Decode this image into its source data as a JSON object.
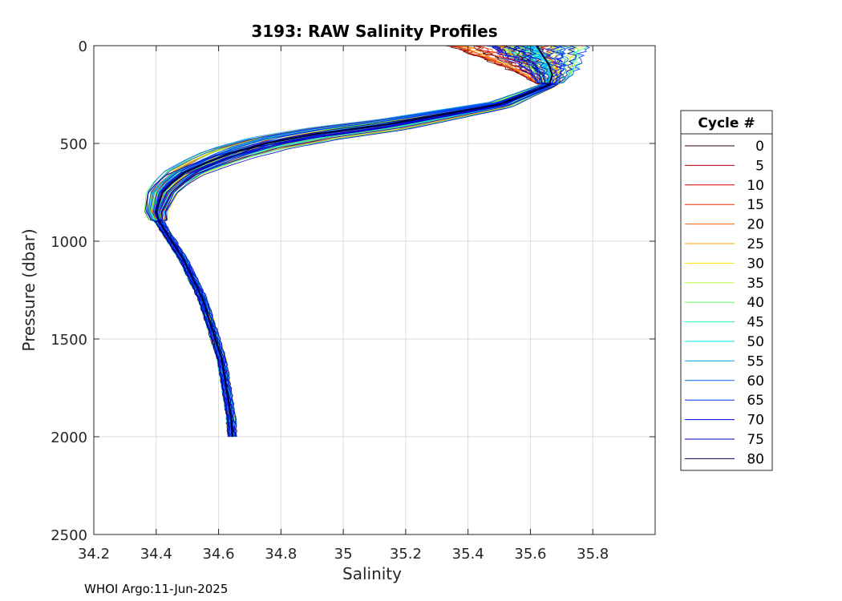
{
  "chart_data": {
    "type": "line",
    "title": "3193: RAW Salinity Profiles",
    "xlabel": "Salinity",
    "ylabel": "Pressure (dbar)",
    "xlim": [
      34.2,
      36.0
    ],
    "ylim": [
      0,
      2500
    ],
    "y_reversed": true,
    "grid": true,
    "x_ticks": [
      34.2,
      34.4,
      34.6,
      34.8,
      35,
      35.2,
      35.4,
      35.6,
      35.8
    ],
    "x_tick_labels": [
      "34.2",
      "34.4",
      "34.6",
      "34.8",
      "35",
      "35.2",
      "35.4",
      "35.6",
      "35.8"
    ],
    "y_ticks": [
      0,
      500,
      1000,
      1500,
      2000,
      2500
    ],
    "y_tick_labels": [
      "0",
      "500",
      "1000",
      "1500",
      "2000",
      "2500"
    ],
    "legend": {
      "title": "Cycle #",
      "placement": "right",
      "entries": [
        {
          "label": "0",
          "color": "#3a0000"
        },
        {
          "label": "5",
          "color": "#b00000"
        },
        {
          "label": "10",
          "color": "#e00000"
        },
        {
          "label": "15",
          "color": "#f02800"
        },
        {
          "label": "20",
          "color": "#ff6000"
        },
        {
          "label": "25",
          "color": "#ffa000"
        },
        {
          "label": "30",
          "color": "#ffe000"
        },
        {
          "label": "35",
          "color": "#b8ff40"
        },
        {
          "label": "40",
          "color": "#60ff60"
        },
        {
          "label": "45",
          "color": "#20ffa0"
        },
        {
          "label": "50",
          "color": "#00e8e8"
        },
        {
          "label": "55",
          "color": "#00a8ff"
        },
        {
          "label": "60",
          "color": "#0068e0"
        },
        {
          "label": "65",
          "color": "#0030ff"
        },
        {
          "label": "70",
          "color": "#0000f0"
        },
        {
          "label": "75",
          "color": "#0000c0"
        },
        {
          "label": "80",
          "color": "#000060"
        }
      ]
    },
    "mean_profile": {
      "pressure": [
        0,
        50,
        100,
        150,
        200,
        300,
        400,
        450,
        500,
        550,
        600,
        650,
        700,
        750,
        800,
        850,
        900,
        950,
        1000,
        1100,
        1200,
        1300,
        1400,
        1500,
        1600,
        1700,
        1800,
        1900,
        2000
      ],
      "salinity": [
        35.62,
        35.64,
        35.66,
        35.67,
        35.66,
        35.5,
        35.15,
        34.92,
        34.75,
        34.64,
        34.56,
        34.49,
        34.45,
        34.42,
        34.41,
        34.4,
        34.41,
        34.43,
        34.45,
        34.49,
        34.52,
        34.55,
        34.57,
        34.59,
        34.61,
        34.62,
        34.63,
        34.64,
        34.645
      ]
    }
  },
  "footer": "WHOI Argo:11-Jun-2025"
}
